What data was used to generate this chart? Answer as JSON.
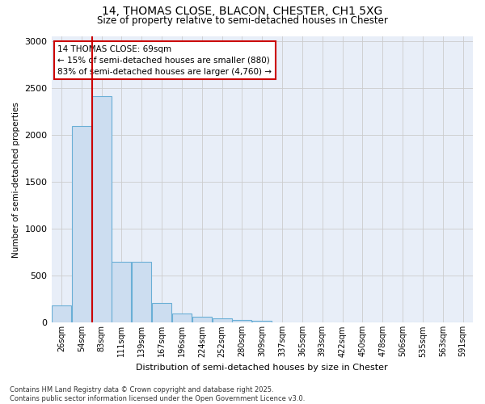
{
  "title_line1": "14, THOMAS CLOSE, BLACON, CHESTER, CH1 5XG",
  "title_line2": "Size of property relative to semi-detached houses in Chester",
  "xlabel": "Distribution of semi-detached houses by size in Chester",
  "ylabel": "Number of semi-detached properties",
  "bar_color": "#ccddf0",
  "bar_edge_color": "#6aafd6",
  "grid_color": "#cccccc",
  "bg_color": "#e8eef8",
  "annotation_text": "14 THOMAS CLOSE: 69sqm\n← 15% of semi-detached houses are smaller (880)\n83% of semi-detached houses are larger (4,760) →",
  "annotation_box_color": "#ffffff",
  "annotation_edge_color": "#cc0000",
  "vline_color": "#cc0000",
  "vline_x_index": 1.5,
  "categories": [
    "26sqm",
    "54sqm",
    "83sqm",
    "111sqm",
    "139sqm",
    "167sqm",
    "196sqm",
    "224sqm",
    "252sqm",
    "280sqm",
    "309sqm",
    "337sqm",
    "365sqm",
    "393sqm",
    "422sqm",
    "450sqm",
    "478sqm",
    "506sqm",
    "535sqm",
    "563sqm",
    "591sqm"
  ],
  "bar_heights": [
    185,
    2095,
    2415,
    650,
    650,
    210,
    100,
    60,
    50,
    30,
    20,
    0,
    0,
    0,
    0,
    0,
    0,
    0,
    0,
    0,
    0
  ],
  "ylim": [
    0,
    3050
  ],
  "yticks": [
    0,
    500,
    1000,
    1500,
    2000,
    2500,
    3000
  ],
  "footer_text": "Contains HM Land Registry data © Crown copyright and database right 2025.\nContains public sector information licensed under the Open Government Licence v3.0."
}
